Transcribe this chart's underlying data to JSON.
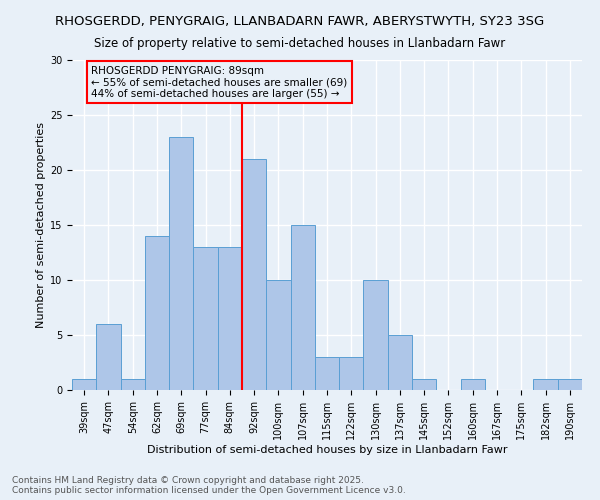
{
  "title": "RHOSGERDD, PENYGRAIG, LLANBADARN FAWR, ABERYSTWYTH, SY23 3SG",
  "subtitle": "Size of property relative to semi-detached houses in Llanbadarn Fawr",
  "xlabel": "Distribution of semi-detached houses by size in Llanbadarn Fawr",
  "ylabel": "Number of semi-detached properties",
  "categories": [
    "39sqm",
    "47sqm",
    "54sqm",
    "62sqm",
    "69sqm",
    "77sqm",
    "84sqm",
    "92sqm",
    "100sqm",
    "107sqm",
    "115sqm",
    "122sqm",
    "130sqm",
    "137sqm",
    "145sqm",
    "152sqm",
    "160sqm",
    "167sqm",
    "175sqm",
    "182sqm",
    "190sqm"
  ],
  "values": [
    1,
    6,
    1,
    14,
    23,
    13,
    13,
    21,
    10,
    15,
    3,
    3,
    10,
    5,
    1,
    0,
    1,
    0,
    0,
    1,
    1
  ],
  "bar_color": "#aec6e8",
  "bar_edge_color": "#5a9fd4",
  "vline_x_idx": 7,
  "vline_color": "red",
  "annotation_title": "RHOSGERDD PENYGRAIG: 89sqm",
  "annotation_line1": "← 55% of semi-detached houses are smaller (69)",
  "annotation_line2": "44% of semi-detached houses are larger (55) →",
  "ylim": [
    0,
    30
  ],
  "yticks": [
    0,
    5,
    10,
    15,
    20,
    25,
    30
  ],
  "background_color": "#e8f0f8",
  "grid_color": "#ffffff",
  "footnote1": "Contains HM Land Registry data © Crown copyright and database right 2025.",
  "footnote2": "Contains public sector information licensed under the Open Government Licence v3.0.",
  "title_fontsize": 9.5,
  "subtitle_fontsize": 8.5,
  "axis_label_fontsize": 8,
  "tick_fontsize": 7,
  "annotation_fontsize": 7.5,
  "footnote_fontsize": 6.5
}
